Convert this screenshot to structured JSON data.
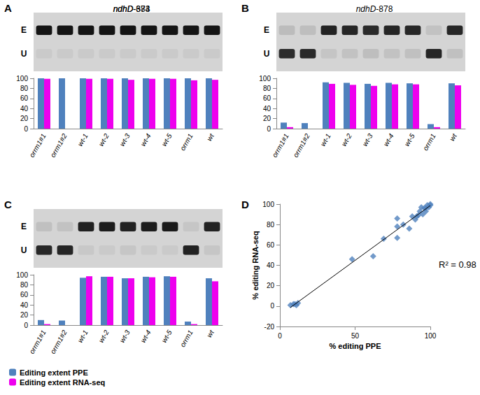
{
  "chart_data": [
    {
      "panel": "A",
      "type": "bar",
      "title": "ndhD-383",
      "gel_labels": [
        "E",
        "U"
      ],
      "categories": [
        "orrm1#1",
        "orrm1#2",
        "wt-1",
        "wt-2",
        "wt-3",
        "wt-4",
        "wt-5",
        "orrm1",
        "wt"
      ],
      "series": [
        {
          "name": "Editing extent PPE",
          "color": "#4f81bd",
          "values": [
            100,
            100,
            100,
            100,
            100,
            100,
            100,
            100,
            100
          ]
        },
        {
          "name": "Editing extent RNA-seq",
          "color": "#ee00ee",
          "values": [
            99,
            null,
            99,
            99,
            97,
            99,
            99,
            96,
            97
          ]
        }
      ],
      "ylim": [
        0,
        100
      ],
      "yticks": [
        0,
        20,
        40,
        60,
        80,
        100
      ],
      "grid": false,
      "legend": "lower left"
    },
    {
      "panel": "B",
      "type": "bar",
      "title": "ndhD-878",
      "gel_labels": [
        "E",
        "U"
      ],
      "categories": [
        "orrm1#1",
        "orrm1#2",
        "wt-1",
        "wt-2",
        "wt-3",
        "wt-4",
        "wt-5",
        "orrm1",
        "wt"
      ],
      "series": [
        {
          "name": "Editing extent PPE",
          "color": "#4f81bd",
          "values": [
            12,
            11,
            92,
            91,
            89,
            91,
            90,
            9,
            90
          ]
        },
        {
          "name": "Editing extent RNA-seq",
          "color": "#ee00ee",
          "values": [
            3,
            null,
            89,
            87,
            85,
            88,
            88,
            3,
            86
          ]
        }
      ],
      "ylim": [
        0,
        100
      ],
      "yticks": [
        0,
        20,
        40,
        60,
        80,
        100
      ],
      "grid": false,
      "legend": "lower left"
    },
    {
      "panel": "C",
      "type": "bar",
      "title": "ndhD-674",
      "gel_labels": [
        "E",
        "U"
      ],
      "categories": [
        "orrm1#1",
        "orrm1#2",
        "wt-1",
        "wt-2",
        "wt-3",
        "wt-4",
        "wt-5",
        "orrm1",
        "wt"
      ],
      "series": [
        {
          "name": "Editing extent PPE",
          "color": "#4f81bd",
          "values": [
            10,
            9,
            94,
            96,
            93,
            96,
            97,
            7,
            93
          ]
        },
        {
          "name": "Editing extent RNA-seq",
          "color": "#ee00ee",
          "values": [
            2,
            null,
            97,
            96,
            93,
            95,
            96,
            2,
            87
          ]
        }
      ],
      "ylim": [
        0,
        100
      ],
      "yticks": [
        0,
        20,
        40,
        60,
        80,
        100
      ],
      "grid": false,
      "legend": "lower left"
    },
    {
      "panel": "D",
      "type": "scatter",
      "x_label": "% editing PPE",
      "y_label": "% editing RNA-seq",
      "annotation": "R² = 0.98",
      "color": "#4f81bd",
      "marker": "diamond",
      "x": [
        7,
        9,
        10,
        11,
        12,
        48,
        62,
        69,
        78,
        78,
        78,
        82,
        86,
        88,
        90,
        91,
        92,
        93,
        94,
        95,
        96,
        97,
        97,
        98,
        99,
        100,
        100
      ],
      "y": [
        1,
        2,
        2,
        1,
        3,
        46,
        49,
        66,
        67,
        78,
        86,
        80,
        76,
        88,
        85,
        88,
        89,
        93,
        97,
        90,
        96,
        96,
        93,
        99,
        97,
        100,
        99
      ],
      "xlim": [
        0,
        100
      ],
      "xticks": [
        0,
        50,
        100
      ],
      "ylim": [
        -20,
        100
      ],
      "yticks": [
        -20,
        0,
        20,
        40,
        60,
        80,
        100
      ],
      "grid": false
    }
  ]
}
